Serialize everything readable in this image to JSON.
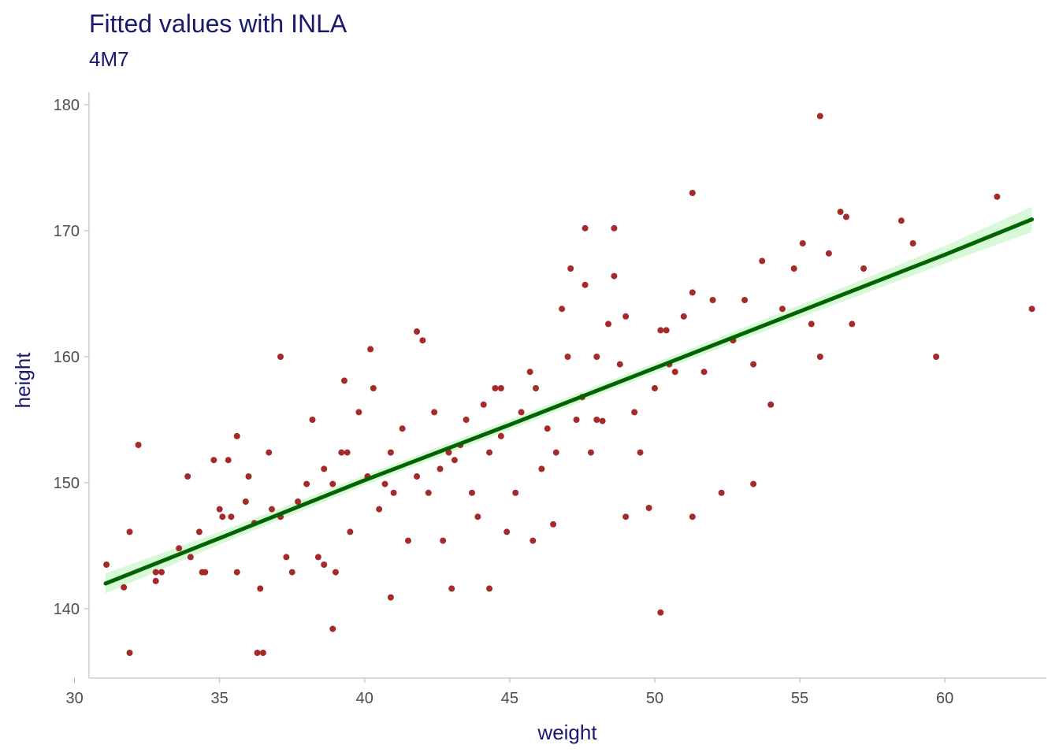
{
  "chart_data": {
    "type": "scatter",
    "title": "Fitted values with INLA",
    "subtitle": "4M7",
    "xlabel": "weight",
    "ylabel": "height",
    "xlim": [
      30.5,
      63.5
    ],
    "ylim": [
      134.5,
      181.0
    ],
    "x_ticks": [
      "30",
      "35",
      "40",
      "45",
      "50",
      "55",
      "60"
    ],
    "y_ticks": [
      "140",
      "150",
      "160",
      "170",
      "180"
    ],
    "grid": false,
    "legend": "none",
    "colors": {
      "points": "#a52a2a",
      "fit_line": "#006400",
      "band": "#90ee90",
      "text": "#191970",
      "ticks": "#4d4d4d",
      "axis": "#b3b3b3"
    },
    "fit_line": {
      "x": [
        31.07,
        35.0,
        40.0,
        45.0,
        50.0,
        55.0,
        60.0,
        63.0
      ],
      "y": [
        142.0,
        145.6,
        150.2,
        154.6,
        159.1,
        163.6,
        168.1,
        170.9
      ]
    },
    "band": {
      "x": [
        31.07,
        35.0,
        40.0,
        45.0,
        50.0,
        55.0,
        60.0,
        63.0
      ],
      "lower": [
        141.2,
        145.1,
        149.8,
        154.2,
        158.7,
        163.1,
        167.4,
        169.9
      ],
      "upper": [
        142.8,
        146.1,
        150.6,
        155.0,
        159.5,
        164.1,
        168.8,
        171.9
      ]
    },
    "points": {
      "x": [
        31.1,
        31.7,
        31.9,
        32.2,
        31.9,
        32.8,
        33.0,
        32.8,
        33.6,
        33.9,
        34.0,
        34.3,
        34.4,
        34.5,
        34.8,
        35.0,
        35.3,
        35.4,
        35.6,
        35.6,
        35.9,
        36.0,
        36.2,
        36.4,
        36.7,
        36.8,
        37.1,
        37.3,
        37.5,
        37.7,
        38.0,
        38.2,
        38.4,
        38.6,
        38.9,
        39.0,
        39.2,
        39.3,
        39.5,
        39.8,
        40.1,
        40.3,
        40.5,
        40.7,
        40.9,
        41.0,
        41.3,
        41.5,
        41.8,
        42.0,
        42.2,
        42.4,
        42.6,
        42.9,
        43.1,
        43.3,
        43.5,
        43.7,
        43.9,
        44.1,
        44.3,
        44.5,
        44.7,
        44.9,
        45.2,
        45.4,
        45.7,
        45.9,
        46.1,
        46.3,
        46.6,
        46.8,
        47.0,
        47.1,
        47.3,
        47.5,
        47.6,
        47.8,
        48.0,
        48.2,
        48.4,
        48.6,
        48.8,
        49.0,
        49.3,
        49.5,
        49.8,
        50.0,
        50.2,
        50.5,
        50.7,
        51.0,
        51.3,
        51.7,
        52.0,
        52.3,
        52.7,
        53.1,
        53.4,
        53.7,
        54.0,
        54.4,
        54.8,
        55.1,
        55.4,
        55.7,
        56.0,
        56.4,
        56.8,
        57.2,
        58.5,
        58.9,
        59.7,
        61.8,
        63.0,
        36.3,
        38.9,
        40.9,
        43.0,
        44.3,
        46.5,
        47.6,
        49.0,
        50.2,
        51.3,
        50.4,
        48.6,
        41.8,
        55.7,
        51.3,
        56.6,
        48.0,
        37.1,
        42.7,
        40.2,
        45.8,
        53.4,
        44.7,
        39.4,
        38.6,
        36.5,
        35.1
      ],
      "y": [
        143.5,
        141.7,
        146.1,
        153.0,
        136.5,
        142.9,
        142.9,
        142.2,
        144.8,
        150.5,
        144.1,
        146.1,
        142.9,
        142.9,
        151.8,
        147.9,
        151.8,
        147.3,
        153.7,
        142.9,
        148.5,
        150.5,
        146.8,
        141.6,
        152.4,
        147.9,
        147.3,
        144.1,
        142.9,
        148.5,
        149.9,
        155.0,
        144.1,
        151.1,
        149.9,
        142.9,
        152.4,
        158.1,
        146.1,
        155.6,
        150.5,
        157.5,
        147.9,
        149.9,
        152.4,
        149.2,
        154.3,
        145.4,
        150.5,
        161.3,
        149.2,
        155.6,
        151.1,
        152.4,
        151.8,
        153.0,
        155.0,
        149.2,
        147.3,
        156.2,
        152.4,
        157.5,
        153.7,
        146.1,
        149.2,
        155.6,
        158.8,
        157.5,
        151.1,
        154.3,
        152.4,
        163.8,
        160.0,
        167.0,
        155.0,
        156.8,
        165.7,
        152.4,
        160.0,
        154.9,
        162.6,
        166.4,
        159.4,
        163.2,
        155.6,
        152.4,
        148.0,
        157.5,
        162.1,
        159.4,
        158.8,
        163.2,
        165.1,
        158.8,
        164.5,
        149.2,
        161.3,
        164.5,
        159.4,
        167.6,
        156.2,
        163.8,
        167.0,
        169.0,
        162.6,
        160.0,
        168.2,
        171.5,
        162.6,
        167.0,
        170.8,
        169.0,
        160.0,
        172.7,
        163.8,
        136.5,
        138.4,
        140.9,
        141.6,
        141.6,
        146.7,
        170.2,
        147.3,
        139.7,
        173.0,
        162.1,
        170.2,
        162.0,
        179.1,
        147.3,
        171.1,
        155.0,
        160.0,
        145.4,
        160.6,
        145.4,
        149.9,
        157.5,
        152.4,
        143.5,
        136.5,
        147.3
      ]
    }
  }
}
